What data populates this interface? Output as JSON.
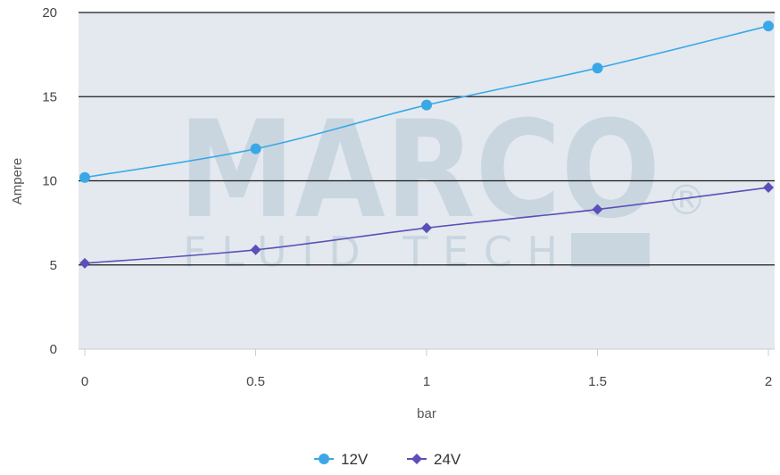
{
  "chart_data": {
    "type": "line",
    "x": [
      0,
      0.5,
      1,
      1.5,
      2
    ],
    "x_tick_labels": [
      "0",
      "0.5",
      "1",
      "1.5",
      "2"
    ],
    "y_tick_labels": [
      "0",
      "5",
      "10",
      "15",
      "20"
    ],
    "xlabel": "bar",
    "ylabel": "Ampere",
    "xlim": [
      0,
      2
    ],
    "ylim": [
      0,
      20
    ],
    "grid": true,
    "legend_position": "bottom-center",
    "series": [
      {
        "name": "12V",
        "values": [
          10.2,
          11.9,
          14.5,
          16.7,
          19.2
        ],
        "color": "#3aa8e6",
        "marker": "circle"
      },
      {
        "name": "24V",
        "values": [
          5.1,
          5.9,
          7.2,
          8.3,
          9.6
        ],
        "color": "#5c4fb8",
        "marker": "diamond"
      }
    ]
  },
  "watermark": {
    "brand": "MARCO",
    "tagline": "FLUID TECH",
    "registered_mark": "®"
  },
  "colors": {
    "plot_background": "#e3e9ef",
    "grid_line": "#1a1a1a",
    "watermark": "#c9d6e0"
  }
}
